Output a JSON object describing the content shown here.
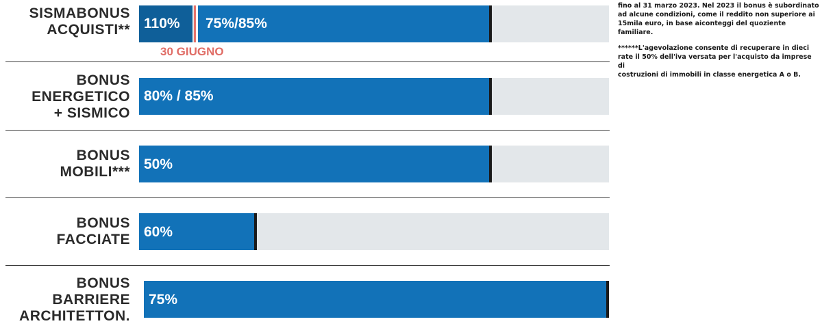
{
  "chart_data": {
    "type": "bar",
    "categories": [
      [
        "SISMABONUS",
        "ACQUISTI**"
      ],
      [
        "BONUS",
        "ENERGETICO",
        "+ SISMICO"
      ],
      [
        "BONUS",
        "MOBILI***"
      ],
      [
        "BONUS",
        "FACCIATE"
      ],
      [
        "BONUS",
        "BARRIERE",
        "ARCHITETTON."
      ]
    ],
    "bars": [
      {
        "value_labels": [
          "110%",
          "75%/85%"
        ],
        "extent": 0.75
      },
      {
        "value_labels": [
          "80% / 85%"
        ],
        "extent": 0.75
      },
      {
        "value_labels": [
          "50%"
        ],
        "extent": 0.75
      },
      {
        "value_labels": [
          "60%"
        ],
        "extent": 0.25
      },
      {
        "value_labels": [
          "75%"
        ],
        "extent": 1.0
      }
    ],
    "annotation": "30 GIUGNO",
    "colors": {
      "bar": "#1272b8",
      "bar_dark": "#0f5f99",
      "track": "#e3e7ea",
      "marker": "#e8736b",
      "end_mark": "#1a1a1a"
    }
  },
  "notes": {
    "lines_1": [
      "fino al 31 marzo 2023. Nel 2023 il bonus è subordinato",
      "ad alcune condizioni, come il reddito non superiore ai",
      "15mila euro, in base aiconteggi del quoziente familiare."
    ],
    "lines_2": [
      "******L'agevolazione consente di recuperare in dieci",
      "rate il 50% dell'iva versata per l'acquisto da imprese di",
      "costruzioni di immobili in classe energetica A o B."
    ]
  }
}
